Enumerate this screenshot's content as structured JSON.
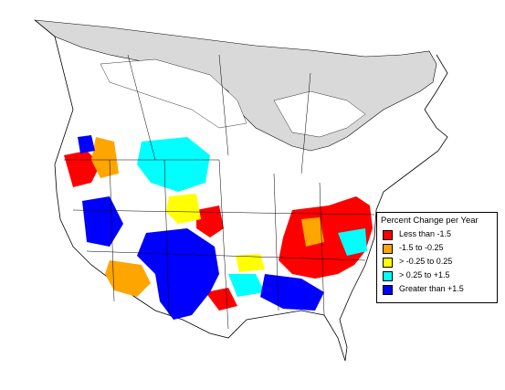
{
  "legend": {
    "title": "Percent Change per Year",
    "items": [
      {
        "label": "Less than -1.5",
        "color": "#ff0000"
      },
      {
        "label": "-1.5 to -0.25",
        "color": "#ffa500"
      },
      {
        "label": "> -0.25 to 0.25",
        "color": "#ffff00"
      },
      {
        "label": "> 0.25 to +1.5",
        "color": "#00ffff"
      },
      {
        "label": "Greater than +1.5",
        "color": "#0000ff"
      }
    ]
  },
  "colors": {
    "background": "#ffffff",
    "no_data_region": "#d9d9d9",
    "boundary": "#000000"
  }
}
